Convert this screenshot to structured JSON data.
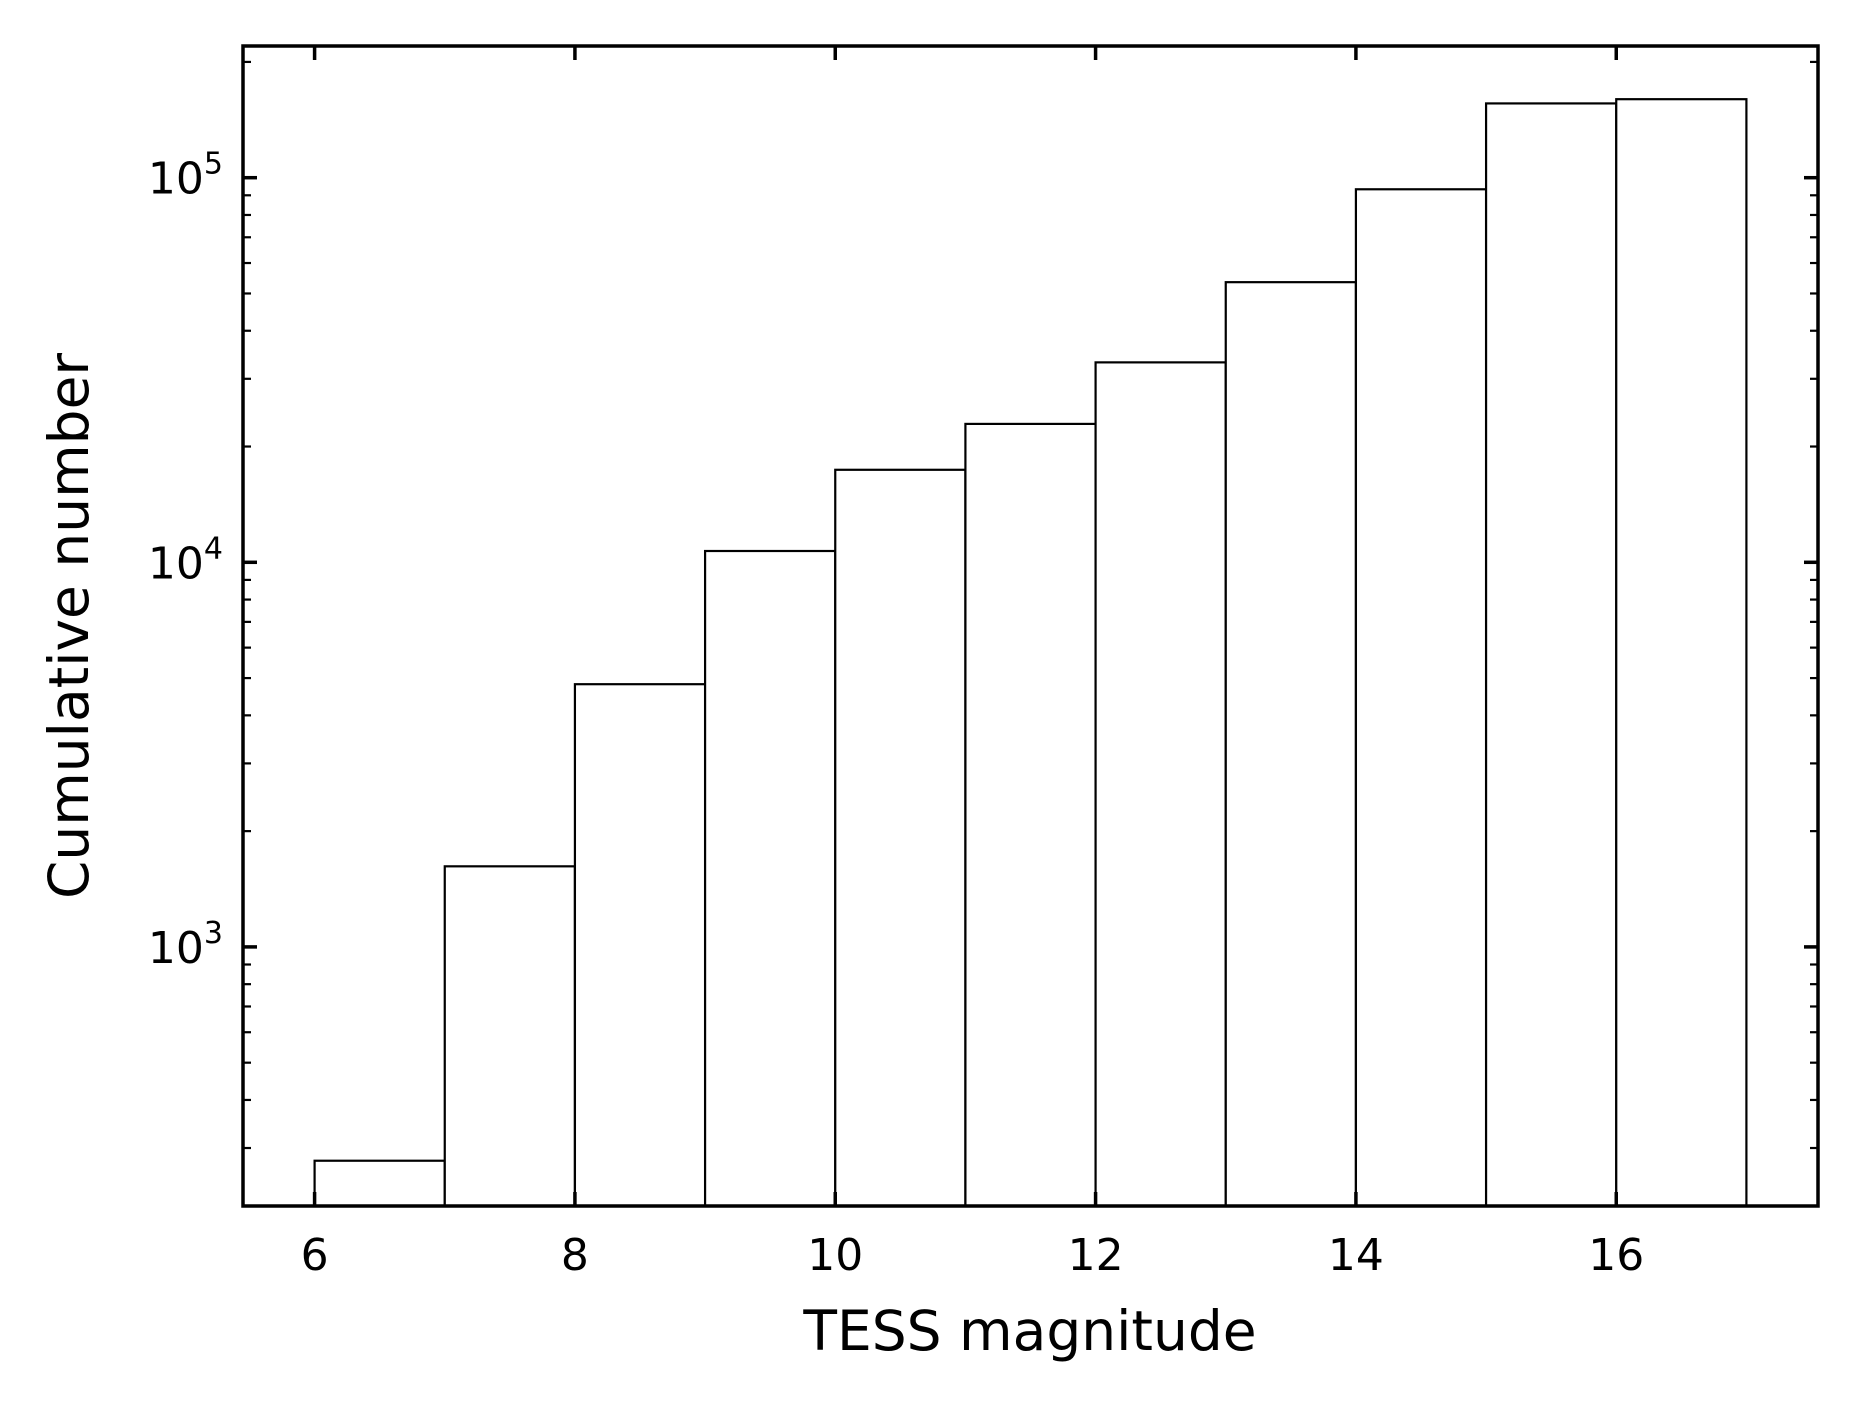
{
  "chart_data": {
    "type": "bar",
    "title": "",
    "xlabel": "TESS magnitude",
    "ylabel": "Cumulative number",
    "yscale": "log",
    "xlim": [
      5.45,
      17.55
    ],
    "ylim": [
      212,
      220000
    ],
    "bin_edges": [
      6,
      7,
      8,
      9,
      10,
      11,
      12,
      13,
      14,
      15,
      16,
      17
    ],
    "values": [
      278,
      1620,
      4820,
      10700,
      17400,
      22900,
      33100,
      53500,
      93300,
      156000,
      160000
    ],
    "x_ticks": [
      6,
      8,
      10,
      12,
      14,
      16
    ],
    "x_tick_labels": [
      "6",
      "8",
      "10",
      "12",
      "14",
      "16"
    ],
    "y_ticks": [
      {
        "value": 1000,
        "base": "10",
        "exp": "3"
      },
      {
        "value": 10000,
        "base": "10",
        "exp": "4"
      },
      {
        "value": 100000,
        "base": "10",
        "exp": "5"
      }
    ],
    "bar_fill": "#ffffff",
    "bar_edge": "#000000",
    "grid": false,
    "legend": "none"
  }
}
